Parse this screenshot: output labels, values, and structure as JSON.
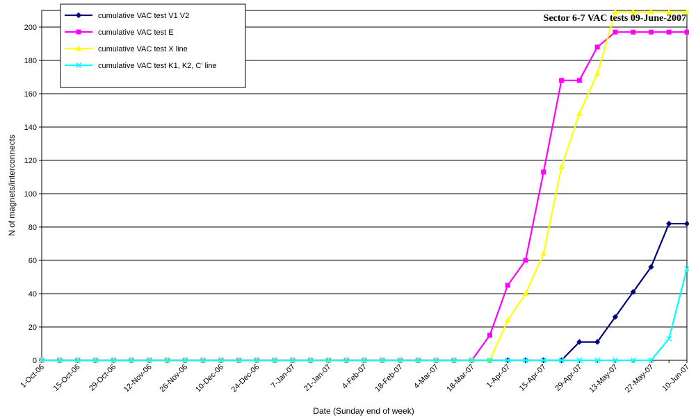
{
  "chart_data": {
    "type": "line",
    "title": "Sector 6-7 VAC tests 09-June-2007",
    "xlabel": "Date (Sunday end of week)",
    "ylabel": "N of magnets/interconnects",
    "ylim": [
      0,
      210
    ],
    "yticks": [
      0,
      20,
      40,
      60,
      80,
      100,
      120,
      140,
      160,
      180,
      200
    ],
    "grid": "horizontal",
    "legend_position": "top-left",
    "x": [
      "1-Oct-06",
      "8-Oct-06",
      "15-Oct-06",
      "22-Oct-06",
      "29-Oct-06",
      "5-Nov-06",
      "12-Nov-06",
      "19-Nov-06",
      "26-Nov-06",
      "3-Dec-06",
      "10-Dec-06",
      "17-Dec-06",
      "24-Dec-06",
      "31-Dec-06",
      "7-Jan-07",
      "14-Jan-07",
      "21-Jan-07",
      "28-Jan-07",
      "4-Feb-07",
      "11-Feb-07",
      "18-Feb-07",
      "25-Feb-07",
      "4-Mar-07",
      "11-Mar-07",
      "18-Mar-07",
      "25-Mar-07",
      "1-Apr-07",
      "8-Apr-07",
      "15-Apr-07",
      "22-Apr-07",
      "29-Apr-07",
      "6-May-07",
      "13-May-07",
      "20-May-07",
      "27-May-07",
      "3-Jun-07",
      "10-Jun-07"
    ],
    "x_tick_labels": [
      "1-Oct-06",
      "15-Oct-06",
      "29-Oct-06",
      "12-Nov-06",
      "26-Nov-06",
      "10-Dec-06",
      "24-Dec-06",
      "7-Jan-07",
      "21-Jan-07",
      "4-Feb-07",
      "18-Feb-07",
      "4-Mar-07",
      "18-Mar-07",
      "1-Apr-07",
      "15-Apr-07",
      "29-Apr-07",
      "13-May-07",
      "27-May-07",
      "10-Jun-07"
    ],
    "series": [
      {
        "name": "cumulative VAC test V1 V2",
        "color": "#000080",
        "marker": "diamond",
        "values": [
          0,
          0,
          0,
          0,
          0,
          0,
          0,
          0,
          0,
          0,
          0,
          0,
          0,
          0,
          0,
          0,
          0,
          0,
          0,
          0,
          0,
          0,
          0,
          0,
          0,
          0,
          0,
          0,
          0,
          0,
          11,
          11,
          26,
          41,
          56,
          82,
          82
        ]
      },
      {
        "name": "cumulative VAC test E",
        "color": "#ff00ff",
        "marker": "square",
        "values": [
          0,
          0,
          0,
          0,
          0,
          0,
          0,
          0,
          0,
          0,
          0,
          0,
          0,
          0,
          0,
          0,
          0,
          0,
          0,
          0,
          0,
          0,
          0,
          0,
          0,
          15,
          45,
          60,
          113,
          168,
          168,
          188,
          197,
          197,
          197,
          197,
          197
        ]
      },
      {
        "name": "cumulative VAC test X line",
        "color": "#ffff00",
        "marker": "triangle",
        "values": [
          0,
          0,
          0,
          0,
          0,
          0,
          0,
          0,
          0,
          0,
          0,
          0,
          0,
          0,
          0,
          0,
          0,
          0,
          0,
          0,
          0,
          0,
          0,
          0,
          0,
          0,
          24,
          40,
          64,
          116,
          148,
          172,
          209,
          209,
          209,
          209,
          209
        ]
      },
      {
        "name": "cumulative VAC test K1, K2, C' line",
        "color": "#00ffff",
        "marker": "x",
        "values": [
          0,
          0,
          0,
          0,
          0,
          0,
          0,
          0,
          0,
          0,
          0,
          0,
          0,
          0,
          0,
          0,
          0,
          0,
          0,
          0,
          0,
          0,
          0,
          0,
          0,
          0,
          0,
          0,
          0,
          0,
          0,
          0,
          0,
          0,
          0,
          13,
          55
        ]
      }
    ]
  }
}
